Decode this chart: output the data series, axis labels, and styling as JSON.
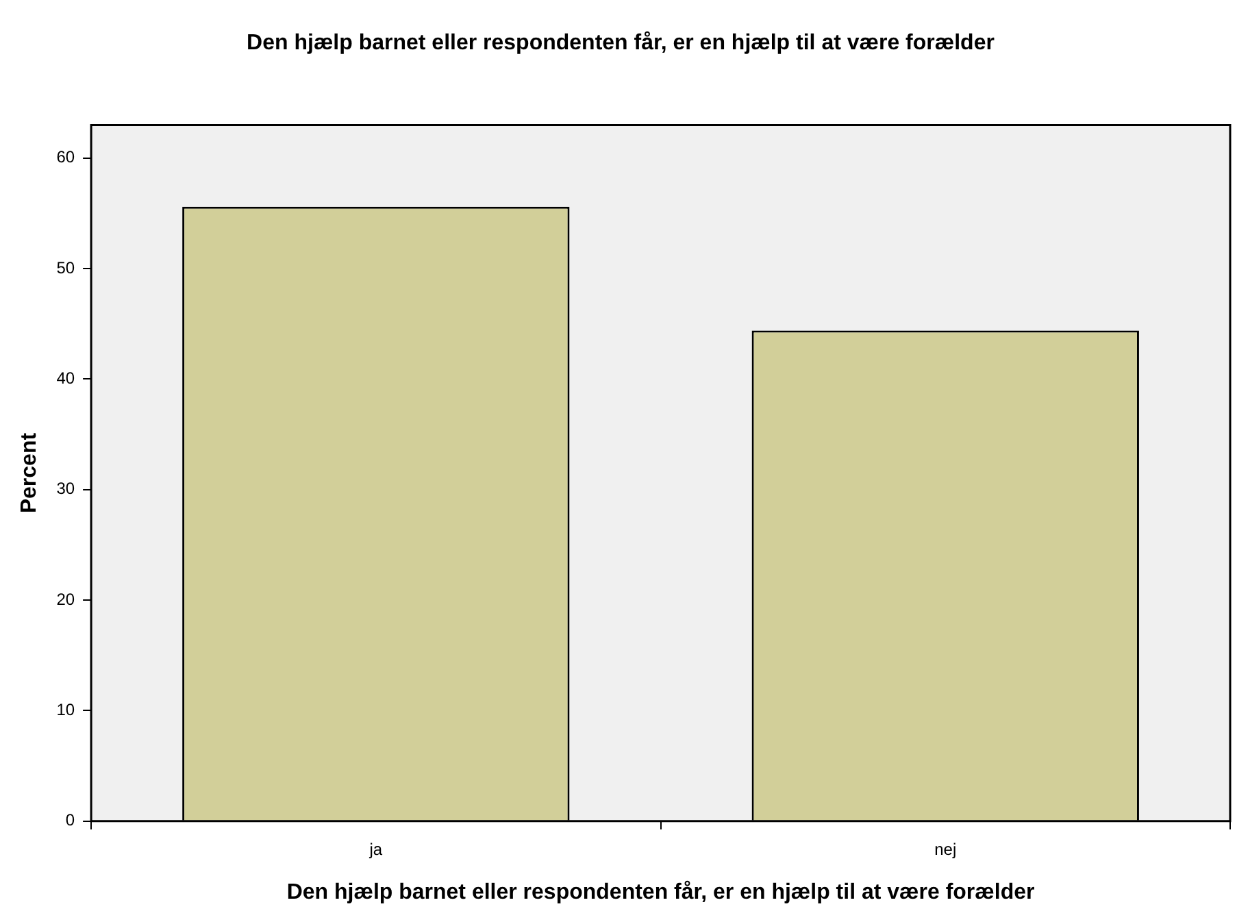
{
  "chart_data": {
    "type": "bar",
    "title": "Den hjælp barnet eller respondenten får, er en hjælp til at være forælder",
    "xlabel": "Den hjælp barnet eller respondenten får, er en hjælp til at være forælder",
    "ylabel": "Percent",
    "categories": [
      "ja",
      "nej"
    ],
    "values": [
      55.6,
      44.4
    ],
    "color": "#d2cf99",
    "ylim": [
      0,
      63
    ],
    "yticks": [
      0,
      10,
      20,
      30,
      40,
      50,
      60
    ],
    "legend": false
  }
}
